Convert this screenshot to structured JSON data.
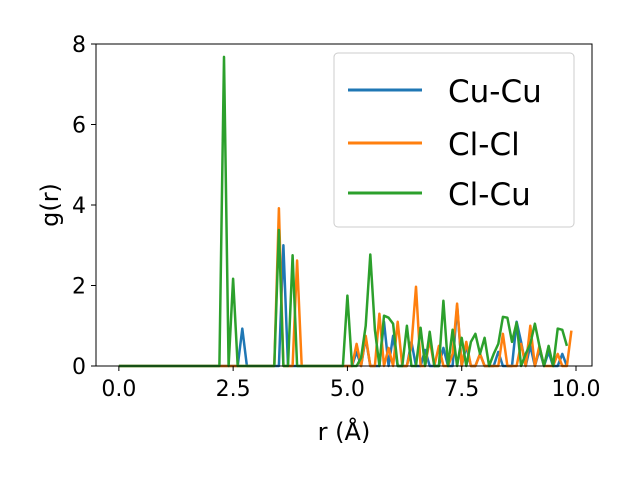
{
  "chart_data": {
    "type": "line",
    "xlabel": "r (Å)",
    "ylabel": "g(r)",
    "xlim": [
      -0.5,
      10.35
    ],
    "ylim": [
      0,
      8
    ],
    "xticks": [
      0.0,
      2.5,
      5.0,
      7.5,
      10.0
    ],
    "xtick_labels": [
      "0.0",
      "2.5",
      "5.0",
      "7.5",
      "10.0"
    ],
    "yticks": [
      0,
      2,
      4,
      6,
      8
    ],
    "ytick_labels": [
      "0",
      "2",
      "4",
      "6",
      "8"
    ],
    "grid": false,
    "legend_position": "top-right",
    "series": [
      {
        "name": "Cu-Cu",
        "color": "#1f77b4",
        "x": [
          0,
          2.2,
          2.4,
          2.5,
          2.6,
          2.7,
          2.8,
          2.9,
          3.3,
          3.4,
          3.5,
          3.6,
          3.7,
          3.8,
          3.9,
          4.0,
          4.1,
          4.4,
          5.1,
          5.2,
          5.3,
          5.4,
          5.5,
          5.6,
          5.7,
          5.8,
          5.9,
          6.0,
          6.1,
          6.2,
          6.3,
          6.4,
          6.5,
          6.6,
          6.7,
          6.8,
          6.9,
          7.0,
          7.1,
          7.2,
          7.3,
          7.4,
          7.5,
          7.6,
          7.7,
          7.8,
          7.9,
          8.0,
          8.1,
          8.2,
          8.3,
          8.4,
          8.5,
          8.6,
          8.7,
          8.8,
          8.9,
          9.0,
          9.1,
          9.2,
          9.3,
          9.4,
          9.5,
          9.6,
          9.7,
          9.8
        ],
        "y": [
          0,
          0,
          0,
          0,
          0,
          0.93,
          0,
          0,
          0,
          0,
          0,
          3.0,
          0,
          0,
          0,
          0,
          0,
          0,
          0,
          0.35,
          0,
          0.7,
          0,
          0,
          0,
          1.1,
          0,
          0.75,
          0,
          0,
          0,
          0.6,
          0,
          0,
          0.4,
          0,
          0,
          0,
          0.45,
          0,
          0,
          1.5,
          0,
          0.5,
          0,
          0,
          0.3,
          0,
          0,
          0,
          0.35,
          0,
          0,
          0,
          1.1,
          0.6,
          0,
          0.5,
          0,
          0.4,
          0,
          0.35,
          0,
          0,
          0.3,
          0
        ]
      },
      {
        "name": "Cl-Cl",
        "color": "#ff7f0e",
        "x": [
          0,
          3.3,
          3.4,
          3.5,
          3.6,
          3.7,
          3.8,
          3.9,
          4.0,
          4.1,
          4.4,
          5.1,
          5.2,
          5.3,
          5.4,
          5.5,
          5.6,
          5.7,
          5.8,
          5.9,
          6.0,
          6.1,
          6.2,
          6.3,
          6.4,
          6.5,
          6.6,
          6.7,
          6.8,
          6.9,
          7.0,
          7.1,
          7.2,
          7.3,
          7.4,
          7.5,
          7.6,
          7.7,
          7.8,
          7.9,
          8.0,
          8.1,
          8.2,
          8.3,
          8.4,
          8.5,
          8.6,
          8.7,
          8.8,
          8.9,
          9.0,
          9.1,
          9.2,
          9.3,
          9.4,
          9.5,
          9.6,
          9.7,
          9.8,
          9.9
        ],
        "y": [
          0,
          0,
          0,
          3.92,
          0,
          0,
          0,
          2.62,
          0,
          0,
          0,
          0,
          0.55,
          0,
          0.75,
          0,
          0,
          1.3,
          0,
          0.45,
          0,
          1.1,
          0,
          0,
          0.5,
          1.97,
          0,
          0,
          0.65,
          0,
          0.5,
          0,
          0,
          0.3,
          1.55,
          0,
          0.6,
          0,
          0,
          0.3,
          0,
          0,
          0,
          0,
          0.8,
          0,
          0,
          0,
          0.55,
          0,
          1.0,
          0,
          0.5,
          0,
          0,
          0,
          0.3,
          0,
          0,
          0.88
        ]
      },
      {
        "name": "Cl-Cu",
        "color": "#2ca02c",
        "x": [
          0,
          2.2,
          2.3,
          2.4,
          2.5,
          2.6,
          2.7,
          3.3,
          3.4,
          3.5,
          3.6,
          3.7,
          3.8,
          3.9,
          4.0,
          4.1,
          4.2,
          4.3,
          4.4,
          4.5,
          4.6,
          4.7,
          4.8,
          4.9,
          5.0,
          5.1,
          5.2,
          5.3,
          5.4,
          5.5,
          5.6,
          5.7,
          5.8,
          5.9,
          6.0,
          6.1,
          6.2,
          6.3,
          6.4,
          6.5,
          6.6,
          6.7,
          6.8,
          6.9,
          7.0,
          7.1,
          7.2,
          7.3,
          7.4,
          7.5,
          7.6,
          7.7,
          7.8,
          7.9,
          8.0,
          8.1,
          8.2,
          8.3,
          8.4,
          8.5,
          8.6,
          8.7,
          8.8,
          8.9,
          9.0,
          9.1,
          9.2,
          9.3,
          9.4,
          9.5,
          9.6,
          9.7,
          9.8
        ],
        "y": [
          0,
          0,
          7.68,
          0,
          2.17,
          0,
          0,
          0,
          0,
          3.38,
          0,
          0,
          2.75,
          0,
          0,
          0,
          0,
          0,
          0,
          0,
          0,
          0,
          0,
          0,
          1.75,
          0,
          0,
          0.2,
          1.0,
          2.77,
          0.9,
          0,
          1.25,
          1.2,
          1.05,
          0,
          0,
          1.0,
          0,
          0,
          0.95,
          0,
          0.85,
          0,
          0,
          1.62,
          0,
          0.9,
          0,
          0.7,
          0,
          0.6,
          0.8,
          0.3,
          0.7,
          0,
          0.3,
          0.55,
          1.22,
          1.2,
          0.6,
          1.08,
          0,
          0.3,
          0.55,
          1.05,
          0.5,
          0,
          0.5,
          0,
          0.93,
          0.9,
          0.5
        ]
      }
    ]
  }
}
